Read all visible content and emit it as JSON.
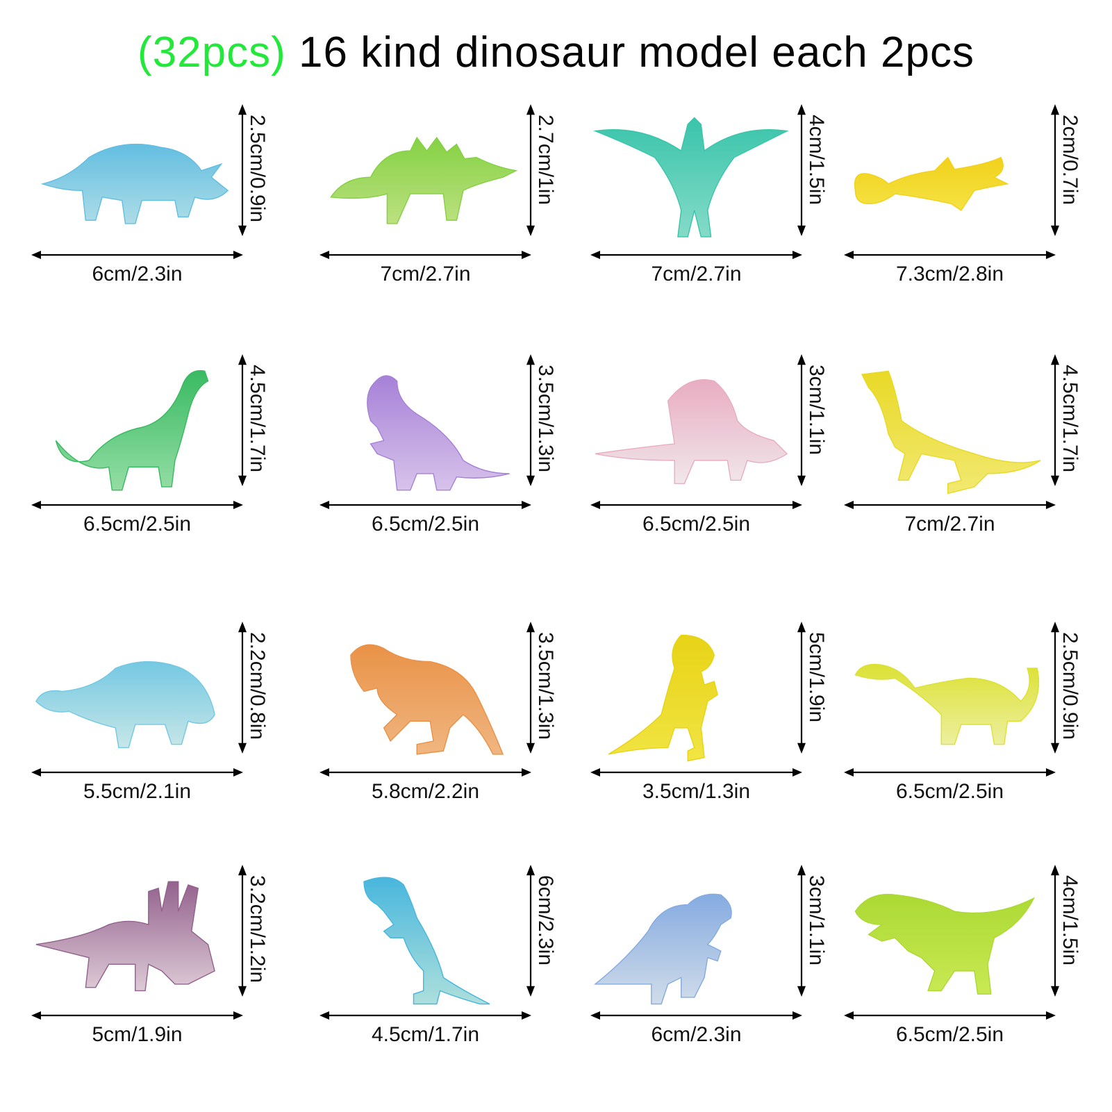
{
  "header": {
    "count_highlight": "(32pcs)",
    "title_rest": "16 kind dinosaur model each 2pcs",
    "highlight_color": "#22e83a"
  },
  "items": [
    {
      "kind": "triceratops",
      "color": "#a9dbe6",
      "accent": "#5bbbe0",
      "width": "6cm/2.3in",
      "height": "2.5cm/0.9in"
    },
    {
      "kind": "stegosaurus",
      "color": "#b9e07a",
      "accent": "#7fcf3a",
      "width": "7cm/2.7in",
      "height": "2.7cm/1in"
    },
    {
      "kind": "pterodactyl",
      "color": "#7fd9c6",
      "accent": "#2fc2a6",
      "width": "7cm/2.7in",
      "height": "4cm/1.5in"
    },
    {
      "kind": "plesiosaur",
      "color": "#f4e23a",
      "accent": "#f2cf10",
      "width": "7.3cm/2.8in",
      "height": "2cm/0.7in"
    },
    {
      "kind": "brachiosaurus",
      "color": "#8fdca0",
      "accent": "#2fb75a",
      "width": "6.5cm/2.5in",
      "height": "4.5cm/1.7in"
    },
    {
      "kind": "dilophosaurus",
      "color": "#d6c0ea",
      "accent": "#a27bd6",
      "width": "6.5cm/2.5in",
      "height": "3.5cm/1.3in"
    },
    {
      "kind": "dimetrodon",
      "color": "#f1e6ea",
      "accent": "#e7a9bf",
      "width": "6.5cm/2.5in",
      "height": "3cm/1.1in"
    },
    {
      "kind": "plateosaurus",
      "color": "#f2e86a",
      "accent": "#e8d81c",
      "width": "7cm/2.7in",
      "height": "4.5cm/1.7in"
    },
    {
      "kind": "ankylosaurus",
      "color": "#c4e6e6",
      "accent": "#6ec6e2",
      "width": "5.5cm/2.1in",
      "height": "2.2cm/0.8in"
    },
    {
      "kind": "allosaurus",
      "color": "#f0b27a",
      "accent": "#e88d3e",
      "width": "5.8cm/2.2in",
      "height": "3.5cm/1.3in"
    },
    {
      "kind": "pachycephalosaurus",
      "color": "#f2e43a",
      "accent": "#e6d10a",
      "width": "3.5cm/1.3in",
      "height": "5cm/1.9in"
    },
    {
      "kind": "apatosaurus",
      "color": "#ecef9a",
      "accent": "#dbe02a",
      "width": "6.5cm/2.5in",
      "height": "2.5cm/0.9in"
    },
    {
      "kind": "styracosaurus",
      "color": "#dcc8d4",
      "accent": "#8e5a88",
      "width": "5cm/1.9in",
      "height": "3.2cm/1.2in"
    },
    {
      "kind": "tyrannosaurus",
      "color": "#a9dedb",
      "accent": "#3fb3dc",
      "width": "4.5cm/1.7in",
      "height": "6cm/2.3in"
    },
    {
      "kind": "corythosaurus",
      "color": "#cfdbe8",
      "accent": "#7fa7e0",
      "width": "6cm/2.3in",
      "height": "3cm/1.1in"
    },
    {
      "kind": "ceratosaurus",
      "color": "#c6e84a",
      "accent": "#a8d82a",
      "width": "6.5cm/2.5in",
      "height": "4cm/1.5in"
    }
  ]
}
